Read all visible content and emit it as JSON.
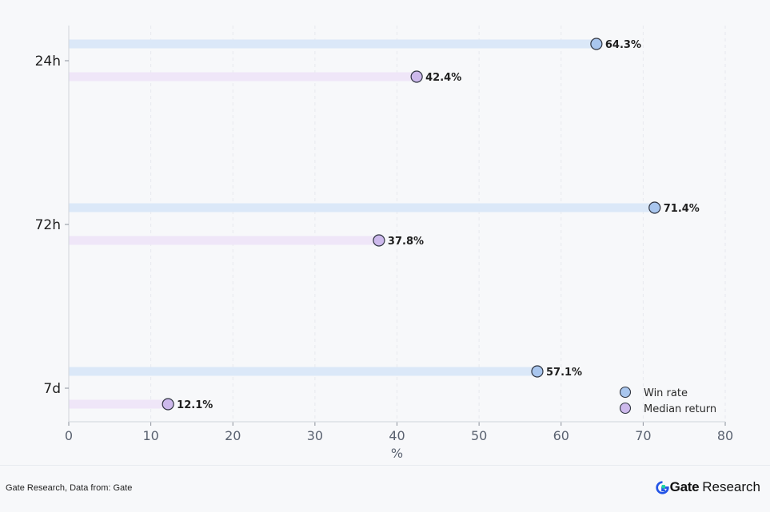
{
  "chart_data": {
    "type": "dot_bar_horizontal",
    "categories": [
      "24h",
      "72h",
      "7d"
    ],
    "series": [
      {
        "name": "Win rate",
        "values": [
          64.3,
          71.4,
          57.1
        ],
        "labels": [
          "64.3%",
          "71.4%",
          "57.1%"
        ],
        "marker_color": "#a9c6ee",
        "track_color": "#dbe8f8"
      },
      {
        "name": "Median return",
        "values": [
          42.4,
          37.8,
          12.1
        ],
        "labels": [
          "42.4%",
          "37.8%",
          "12.1%"
        ],
        "marker_color": "#cdb9ec",
        "track_color": "#efe6f8"
      }
    ],
    "xlabel": "%",
    "ylabel": "",
    "xlim": [
      0,
      80
    ],
    "xticks": [
      "0",
      "10",
      "20",
      "30",
      "40",
      "50",
      "60",
      "70",
      "80"
    ],
    "grid": "vertical dashed",
    "legend_position": "bottom-right"
  },
  "footer": {
    "source": "Gate Research, Data from: Gate",
    "brand_name": "Gate",
    "brand_sub": "Research"
  }
}
